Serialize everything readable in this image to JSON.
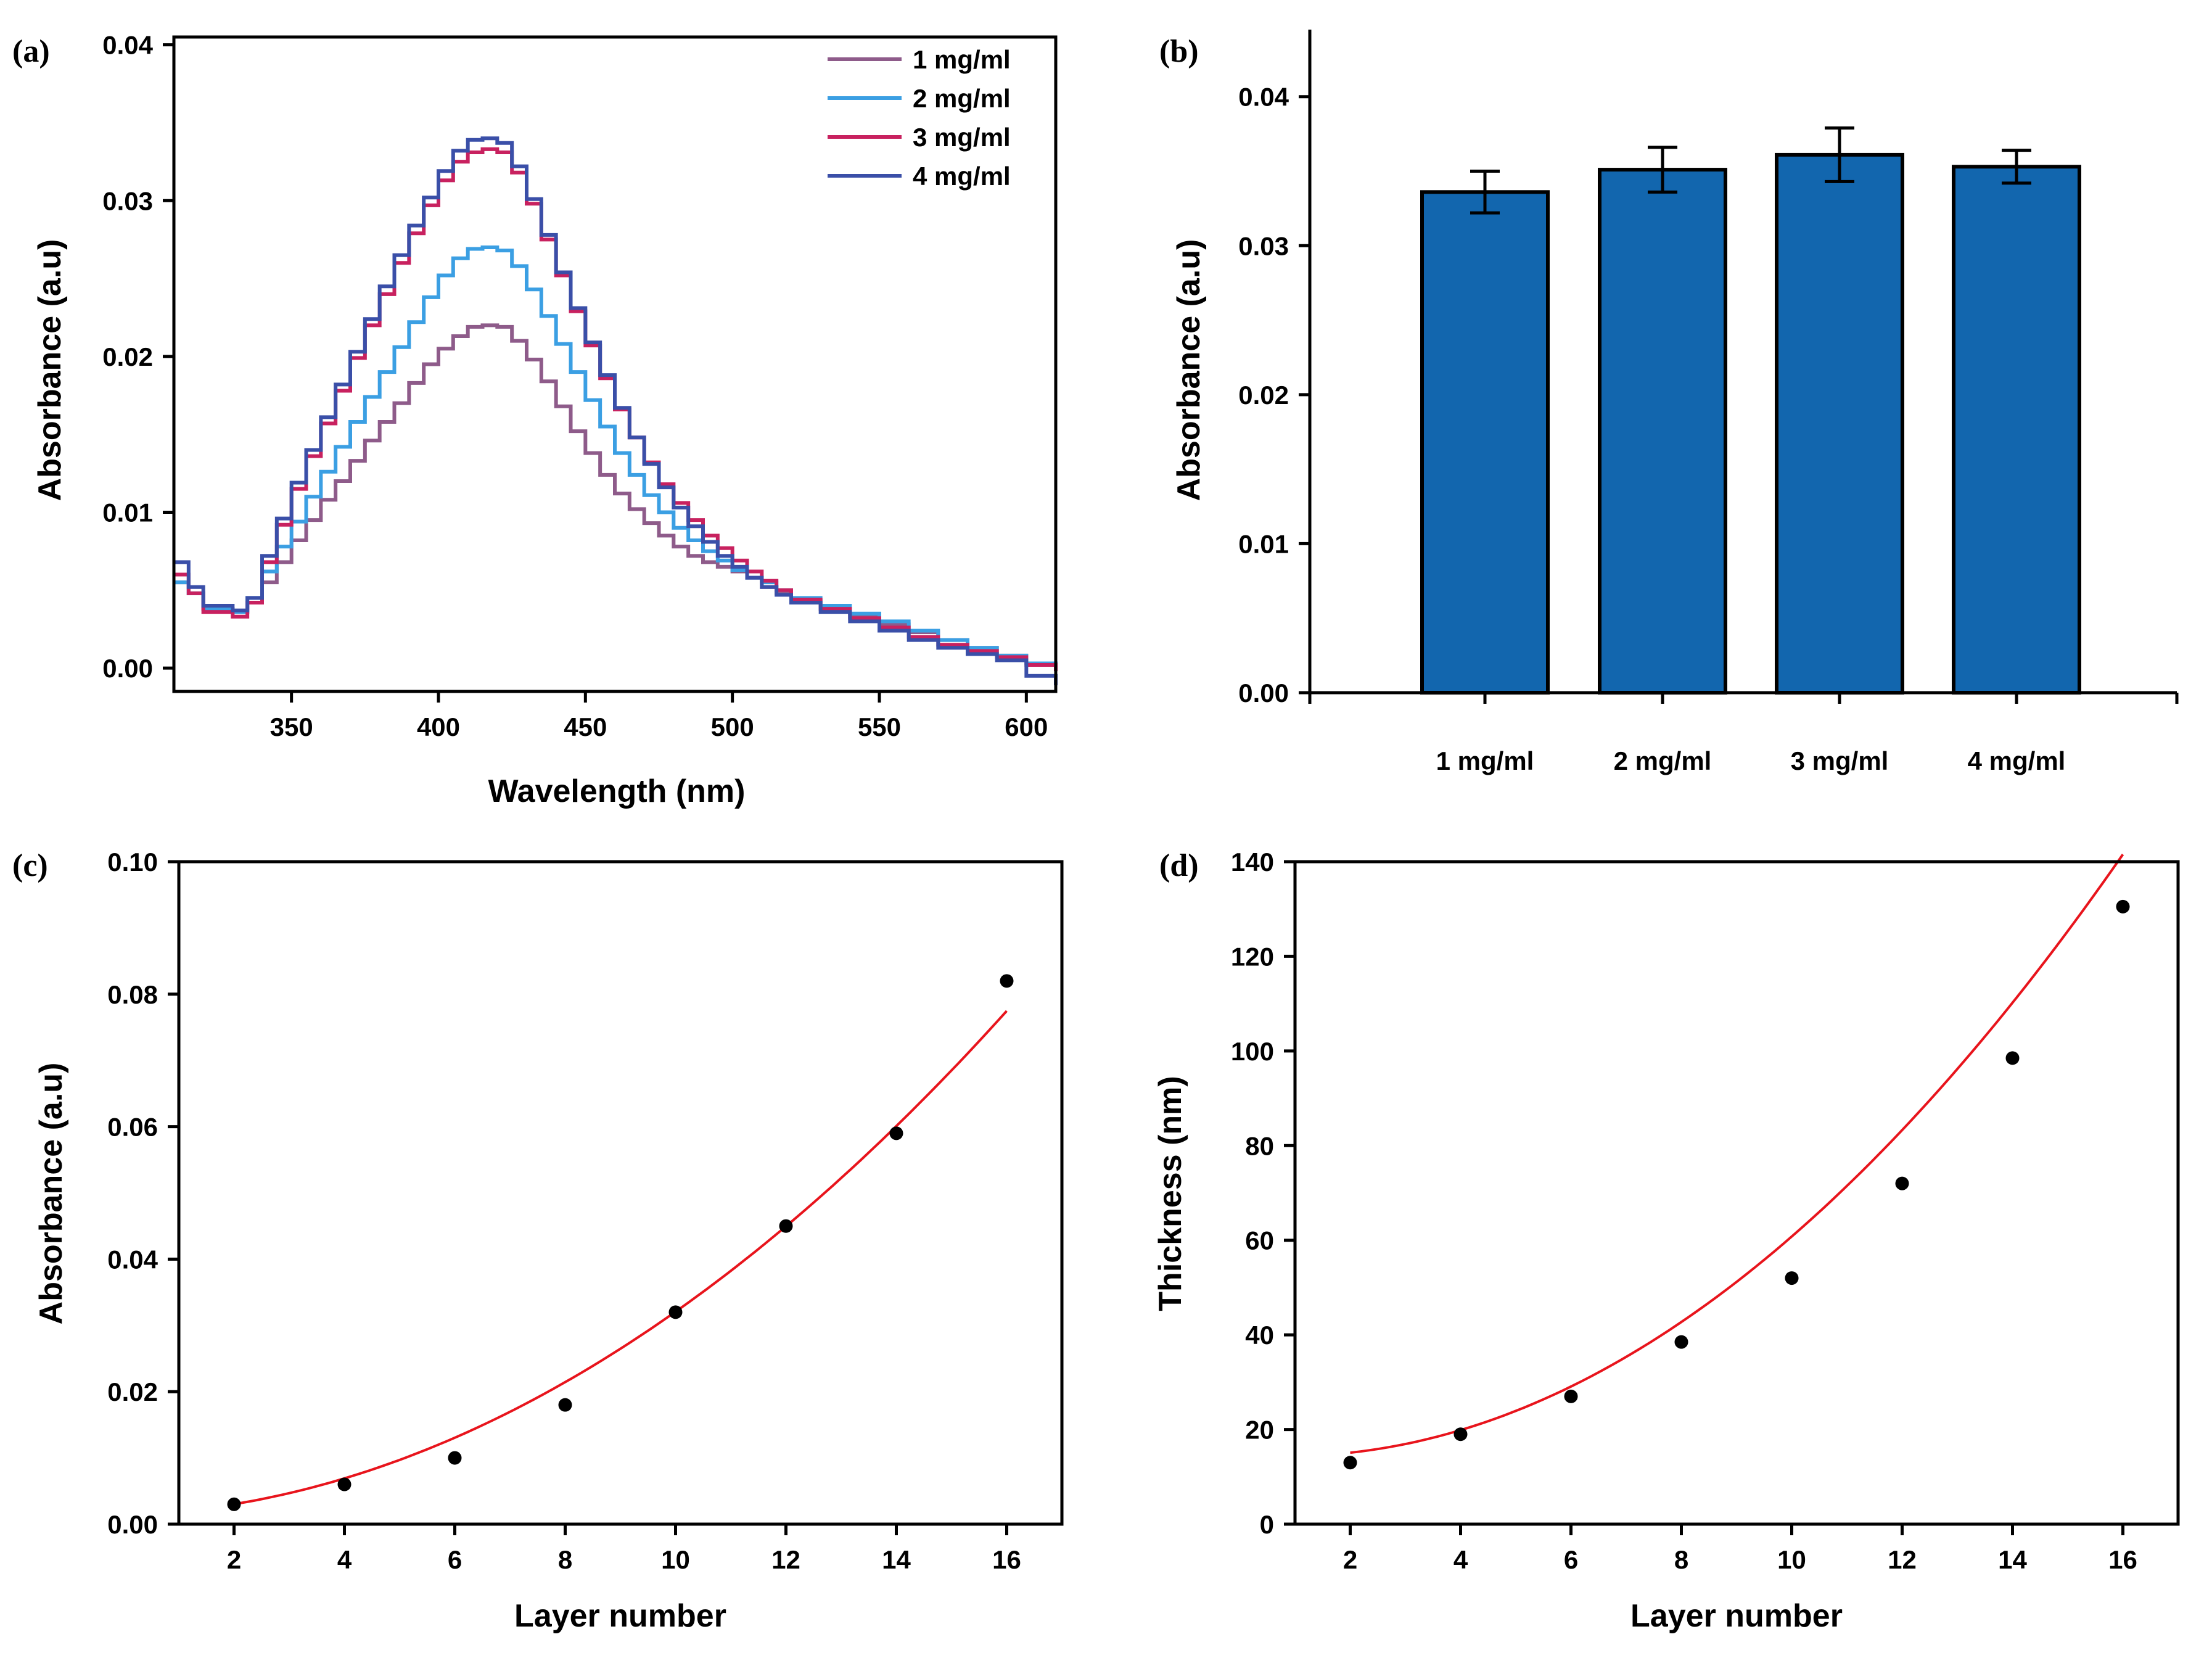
{
  "chart_data": [
    {
      "id": "a",
      "type": "line",
      "panel_label": "(a)",
      "title": "",
      "xlabel": "Wavelength (nm)",
      "ylabel": "Absorbance (a.u)",
      "xlim": [
        310,
        610
      ],
      "ylim": [
        -0.0015,
        0.0405
      ],
      "xticks": [
        350,
        400,
        450,
        500,
        550,
        600
      ],
      "yticks": [
        0.0,
        0.01,
        0.02,
        0.03,
        0.04
      ],
      "ytick_labels": [
        "0.00",
        "0.01",
        "0.02",
        "0.03",
        "0.04"
      ],
      "legend_position": "top-right",
      "series": [
        {
          "name": "1 mg/ml",
          "color": "#8e5b8a",
          "x": [
            310,
            315,
            320,
            330,
            335,
            340,
            345,
            350,
            355,
            360,
            365,
            370,
            375,
            380,
            385,
            390,
            395,
            400,
            405,
            410,
            415,
            420,
            425,
            430,
            435,
            440,
            445,
            450,
            455,
            460,
            465,
            470,
            475,
            480,
            485,
            490,
            495,
            500,
            505,
            510,
            515,
            520,
            530,
            540,
            550,
            560,
            570,
            580,
            590,
            600,
            610
          ],
          "values": [
            0.0055,
            0.0048,
            0.0038,
            0.0036,
            0.0042,
            0.0055,
            0.0068,
            0.0082,
            0.0095,
            0.0108,
            0.012,
            0.0133,
            0.0146,
            0.0158,
            0.017,
            0.0183,
            0.0195,
            0.0205,
            0.0213,
            0.0219,
            0.022,
            0.0219,
            0.021,
            0.0198,
            0.0184,
            0.0168,
            0.0152,
            0.0138,
            0.0124,
            0.0112,
            0.0102,
            0.0093,
            0.0085,
            0.0078,
            0.0072,
            0.0068,
            0.0065,
            0.0062,
            0.0058,
            0.0052,
            0.0048,
            0.0043,
            0.0038,
            0.0033,
            0.0028,
            0.0023,
            0.0018,
            0.0013,
            0.0008,
            0.0003,
            0.0
          ]
        },
        {
          "name": "2 mg/ml",
          "color": "#3b9fe3",
          "x": [
            310,
            315,
            320,
            330,
            335,
            340,
            345,
            350,
            355,
            360,
            365,
            370,
            375,
            380,
            385,
            390,
            395,
            400,
            405,
            410,
            415,
            420,
            425,
            430,
            435,
            440,
            445,
            450,
            455,
            460,
            465,
            470,
            475,
            480,
            485,
            490,
            495,
            500,
            505,
            510,
            515,
            520,
            530,
            540,
            550,
            560,
            570,
            580,
            590,
            600,
            610
          ],
          "values": [
            0.0055,
            0.0048,
            0.0038,
            0.0036,
            0.0045,
            0.0062,
            0.0078,
            0.0094,
            0.011,
            0.0126,
            0.0142,
            0.0158,
            0.0174,
            0.019,
            0.0206,
            0.0222,
            0.0238,
            0.0252,
            0.0263,
            0.0269,
            0.027,
            0.0268,
            0.0258,
            0.0243,
            0.0226,
            0.0208,
            0.019,
            0.0172,
            0.0155,
            0.0138,
            0.0124,
            0.0111,
            0.01,
            0.009,
            0.0082,
            0.0075,
            0.0069,
            0.0063,
            0.0058,
            0.0055,
            0.005,
            0.0045,
            0.004,
            0.0035,
            0.003,
            0.0024,
            0.0018,
            0.0013,
            0.0008,
            0.0003,
            0.0
          ]
        },
        {
          "name": "3 mg/ml",
          "color": "#c8215f",
          "x": [
            310,
            315,
            320,
            330,
            335,
            340,
            345,
            350,
            355,
            360,
            365,
            370,
            375,
            380,
            385,
            390,
            395,
            400,
            405,
            410,
            415,
            420,
            425,
            430,
            435,
            440,
            445,
            450,
            455,
            460,
            465,
            470,
            475,
            480,
            485,
            490,
            495,
            500,
            505,
            510,
            515,
            520,
            530,
            540,
            550,
            560,
            570,
            580,
            590,
            600,
            610
          ],
          "values": [
            0.006,
            0.0048,
            0.0036,
            0.0033,
            0.0042,
            0.0068,
            0.0092,
            0.0115,
            0.0136,
            0.0157,
            0.0178,
            0.0199,
            0.022,
            0.024,
            0.026,
            0.0279,
            0.0297,
            0.0313,
            0.0325,
            0.0331,
            0.0333,
            0.0331,
            0.0318,
            0.0298,
            0.0275,
            0.0252,
            0.0229,
            0.0207,
            0.0186,
            0.0166,
            0.0148,
            0.0132,
            0.0118,
            0.0106,
            0.0095,
            0.0085,
            0.0077,
            0.0069,
            0.0062,
            0.0056,
            0.005,
            0.0044,
            0.0038,
            0.0032,
            0.0026,
            0.002,
            0.0015,
            0.0011,
            0.0007,
            0.0002,
            -0.0002
          ]
        },
        {
          "name": "4 mg/ml",
          "color": "#3a4fa8",
          "x": [
            310,
            315,
            320,
            330,
            335,
            340,
            345,
            350,
            355,
            360,
            365,
            370,
            375,
            380,
            385,
            390,
            395,
            400,
            405,
            410,
            415,
            420,
            425,
            430,
            435,
            440,
            445,
            450,
            455,
            460,
            465,
            470,
            475,
            480,
            485,
            490,
            495,
            500,
            505,
            510,
            515,
            520,
            530,
            540,
            550,
            560,
            570,
            580,
            590,
            600,
            610
          ],
          "values": [
            0.0068,
            0.0052,
            0.004,
            0.0037,
            0.0045,
            0.0072,
            0.0096,
            0.0119,
            0.014,
            0.0161,
            0.0182,
            0.0203,
            0.0224,
            0.0245,
            0.0265,
            0.0284,
            0.0302,
            0.0319,
            0.0332,
            0.0339,
            0.034,
            0.0337,
            0.0322,
            0.0301,
            0.0278,
            0.0254,
            0.0231,
            0.0209,
            0.0188,
            0.0167,
            0.0148,
            0.0131,
            0.0116,
            0.0103,
            0.0091,
            0.0081,
            0.0072,
            0.0065,
            0.0058,
            0.0052,
            0.0047,
            0.0042,
            0.0036,
            0.003,
            0.0024,
            0.0018,
            0.0013,
            0.0009,
            0.0005,
            -0.0005,
            -0.0011
          ]
        }
      ]
    },
    {
      "id": "b",
      "type": "bar",
      "panel_label": "(b)",
      "title": "",
      "xlabel": "",
      "ylabel": "Absorbance (a.u)",
      "ylim": [
        0,
        0.0445
      ],
      "yticks": [
        0.0,
        0.01,
        0.02,
        0.03,
        0.04
      ],
      "ytick_labels": [
        "0.00",
        "0.01",
        "0.02",
        "0.03",
        "0.04"
      ],
      "categories": [
        "1 mg/ml",
        "2 mg/ml",
        "3 mg/ml",
        "4 mg/ml"
      ],
      "values": [
        0.0336,
        0.0351,
        0.0361,
        0.0353
      ],
      "errors": [
        0.0014,
        0.0015,
        0.0018,
        0.0011
      ],
      "bar_color": "#1266ae"
    },
    {
      "id": "c",
      "type": "scatter",
      "panel_label": "(c)",
      "title": "",
      "xlabel": "Layer number",
      "ylabel": "Absorbance (a.u)",
      "xlim": [
        1,
        17
      ],
      "ylim": [
        0,
        0.1
      ],
      "xticks": [
        2,
        4,
        6,
        8,
        10,
        12,
        14,
        16
      ],
      "yticks": [
        0.0,
        0.02,
        0.04,
        0.06,
        0.08,
        0.1
      ],
      "ytick_labels": [
        "0.00",
        "0.02",
        "0.04",
        "0.06",
        "0.08",
        "0.10"
      ],
      "x": [
        2,
        4,
        6,
        8,
        10,
        12,
        14,
        16
      ],
      "values": [
        0.003,
        0.006,
        0.01,
        0.018,
        0.032,
        0.045,
        0.059,
        0.082
      ],
      "fit": {
        "type": "quadratic",
        "color": "#e8141c",
        "coefficients": [
          0.000281,
          0.00026,
          0.00137
        ],
        "x_range": [
          2,
          16
        ]
      }
    },
    {
      "id": "d",
      "type": "scatter",
      "panel_label": "(d)",
      "title": "",
      "xlabel": "Layer number",
      "ylabel": "Thickness (nm)",
      "xlim": [
        1,
        17
      ],
      "ylim": [
        0,
        140
      ],
      "xticks": [
        2,
        4,
        6,
        8,
        10,
        12,
        14,
        16
      ],
      "yticks": [
        0,
        20,
        40,
        60,
        80,
        100,
        120,
        140
      ],
      "ytick_labels": [
        "0",
        "20",
        "40",
        "60",
        "80",
        "100",
        "120",
        "140"
      ],
      "x": [
        2,
        4,
        6,
        8,
        10,
        12,
        14,
        16
      ],
      "values": [
        13,
        19,
        27,
        38.5,
        52,
        72,
        98.5,
        130.5
      ],
      "fit": {
        "type": "quadratic",
        "color": "#e8141c",
        "coefficients": [
          0.5536,
          -0.933,
          14.75
        ],
        "x_range": [
          2,
          16
        ]
      }
    }
  ]
}
